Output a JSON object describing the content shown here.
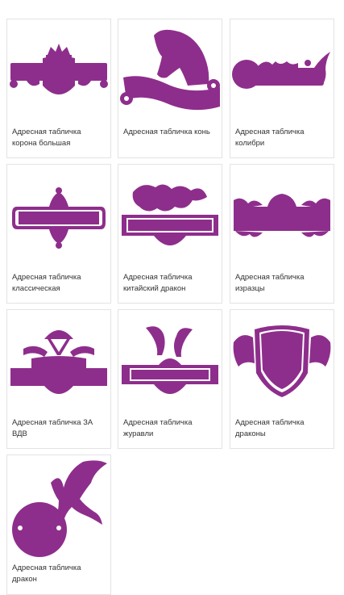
{
  "products": [
    {
      "title": "Адресная табличка корона большая",
      "icon": "crown-plaque-icon"
    },
    {
      "title": "Адресная табличка конь",
      "icon": "horse-plaque-icon"
    },
    {
      "title": "Адресная табличка колибри",
      "icon": "hummingbird-plaque-icon"
    },
    {
      "title": "Адресная табличка классическая",
      "icon": "classic-plaque-icon"
    },
    {
      "title": "Адресная табличка китайский дракон",
      "icon": "chinese-dragon-plaque-icon"
    },
    {
      "title": "Адресная табличка изразцы",
      "icon": "tiles-plaque-icon"
    },
    {
      "title": "Адресная табличка ЗА ВДВ",
      "icon": "vdv-plaque-icon"
    },
    {
      "title": "Адресная табличка журавли",
      "icon": "cranes-plaque-icon"
    },
    {
      "title": "Адресная табличка драконы",
      "icon": "dragons-plaque-icon"
    },
    {
      "title": "Адресная табличка дракон",
      "icon": "dragon-plaque-icon"
    }
  ],
  "colors": {
    "accent": "#8e2e8c",
    "border": "#e3e3e3",
    "text": "#333333"
  }
}
